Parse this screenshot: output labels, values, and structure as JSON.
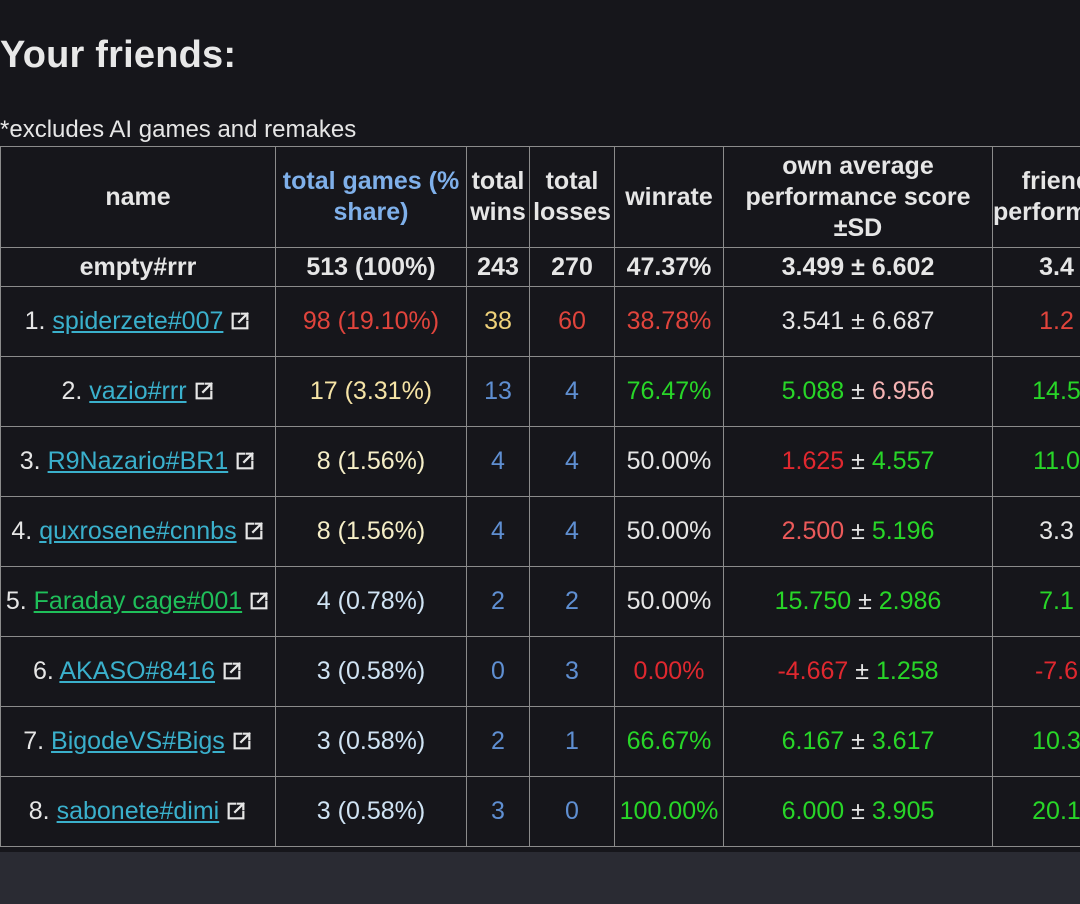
{
  "heading": "Your friends:",
  "note": "*excludes AI games and remakes",
  "columns": {
    "name": "name",
    "total_games": "total games (% share)",
    "total_wins": "total wins",
    "total_losses": "total losses",
    "winrate": "winrate",
    "own_perf": "own average performance score ±SD",
    "friend_perf": "friend performance"
  },
  "total_row": {
    "name": "empty#rrr",
    "games": "513 (100%)",
    "wins": "243",
    "losses": "270",
    "winrate": "47.37%",
    "perf": "3.499 ± 6.602",
    "friend_perf": "3.4"
  },
  "friends": [
    {
      "rank": "1.",
      "name": "spiderzete#007",
      "games": "98 (19.10%)",
      "wins": "38",
      "losses": "60",
      "winrate": "38.78%",
      "perf_mean": "3.541",
      "perf_sd": "6.687",
      "friend_perf": "1.2",
      "name_color": "#3ab0cc",
      "games_color": "#e0443c",
      "wins_color": "#f0d27a",
      "losses_color": "#e0443c",
      "winrate_color": "#e0443c",
      "mean_color": "#e6e6e6",
      "sd_color": "#e6e6e6",
      "friend_color": "#e0443c"
    },
    {
      "rank": "2.",
      "name": "vazio#rrr",
      "games": "17 (3.31%)",
      "wins": "13",
      "losses": "4",
      "winrate": "76.47%",
      "perf_mean": "5.088",
      "perf_sd": "6.956",
      "friend_perf": "14.5",
      "name_color": "#3ab0cc",
      "games_color": "#f6e4a6",
      "wins_color": "#5f8fd2",
      "losses_color": "#5f8fd2",
      "winrate_color": "#28d628",
      "mean_color": "#28d628",
      "sd_color": "#f5b3b3",
      "friend_color": "#28d628"
    },
    {
      "rank": "3.",
      "name": "R9Nazario#BR1",
      "games": "8 (1.56%)",
      "wins": "4",
      "losses": "4",
      "winrate": "50.00%",
      "perf_mean": "1.625",
      "perf_sd": "4.557",
      "friend_perf": "11.0",
      "name_color": "#3ab0cc",
      "games_color": "#f6efc8",
      "wins_color": "#5f8fd2",
      "losses_color": "#5f8fd2",
      "winrate_color": "#e6e6e6",
      "mean_color": "#e0282f",
      "sd_color": "#28d628",
      "friend_color": "#28d628"
    },
    {
      "rank": "4.",
      "name": "quxrosene#cnnbs",
      "games": "8 (1.56%)",
      "wins": "4",
      "losses": "4",
      "winrate": "50.00%",
      "perf_mean": "2.500",
      "perf_sd": "5.196",
      "friend_perf": "3.3",
      "name_color": "#3ab0cc",
      "games_color": "#f6efc8",
      "wins_color": "#5f8fd2",
      "losses_color": "#5f8fd2",
      "winrate_color": "#e6e6e6",
      "mean_color": "#ec5a5a",
      "sd_color": "#28d628",
      "friend_color": "#e6e6e6"
    },
    {
      "rank": "5.",
      "name": "Faraday cage#001",
      "games": "4 (0.78%)",
      "wins": "2",
      "losses": "2",
      "winrate": "50.00%",
      "perf_mean": "15.750",
      "perf_sd": "2.986",
      "friend_perf": "7.1",
      "name_color": "#1fbf5a",
      "games_color": "#d0e4f4",
      "wins_color": "#5f8fd2",
      "losses_color": "#5f8fd2",
      "winrate_color": "#e6e6e6",
      "mean_color": "#28d628",
      "sd_color": "#28d628",
      "friend_color": "#28d628"
    },
    {
      "rank": "6.",
      "name": "AKASO#8416",
      "games": "3 (0.58%)",
      "wins": "0",
      "losses": "3",
      "winrate": "0.00%",
      "perf_mean": "-4.667",
      "perf_sd": "1.258",
      "friend_perf": "-7.6",
      "name_color": "#3ab0cc",
      "games_color": "#d0e4f4",
      "wins_color": "#5f8fd2",
      "losses_color": "#5f8fd2",
      "winrate_color": "#e0282f",
      "mean_color": "#e0282f",
      "sd_color": "#28d628",
      "friend_color": "#e0282f"
    },
    {
      "rank": "7.",
      "name": "BigodeVS#Bigs",
      "games": "3 (0.58%)",
      "wins": "2",
      "losses": "1",
      "winrate": "66.67%",
      "perf_mean": "6.167",
      "perf_sd": "3.617",
      "friend_perf": "10.3",
      "name_color": "#3ab0cc",
      "games_color": "#d0e4f4",
      "wins_color": "#5f8fd2",
      "losses_color": "#5f8fd2",
      "winrate_color": "#28d628",
      "mean_color": "#28d628",
      "sd_color": "#28d628",
      "friend_color": "#28d628"
    },
    {
      "rank": "8.",
      "name": "sabonete#dimi",
      "games": "3 (0.58%)",
      "wins": "3",
      "losses": "0",
      "winrate": "100.00%",
      "perf_mean": "6.000",
      "perf_sd": "3.905",
      "friend_perf": "20.1",
      "name_color": "#3ab0cc",
      "games_color": "#d0e4f4",
      "wins_color": "#5f8fd2",
      "losses_color": "#5f8fd2",
      "winrate_color": "#28d628",
      "mean_color": "#28d628",
      "sd_color": "#28d628",
      "friend_color": "#28d628"
    }
  ],
  "pm": "±",
  "icons": {
    "external_link": "external-link-icon"
  }
}
